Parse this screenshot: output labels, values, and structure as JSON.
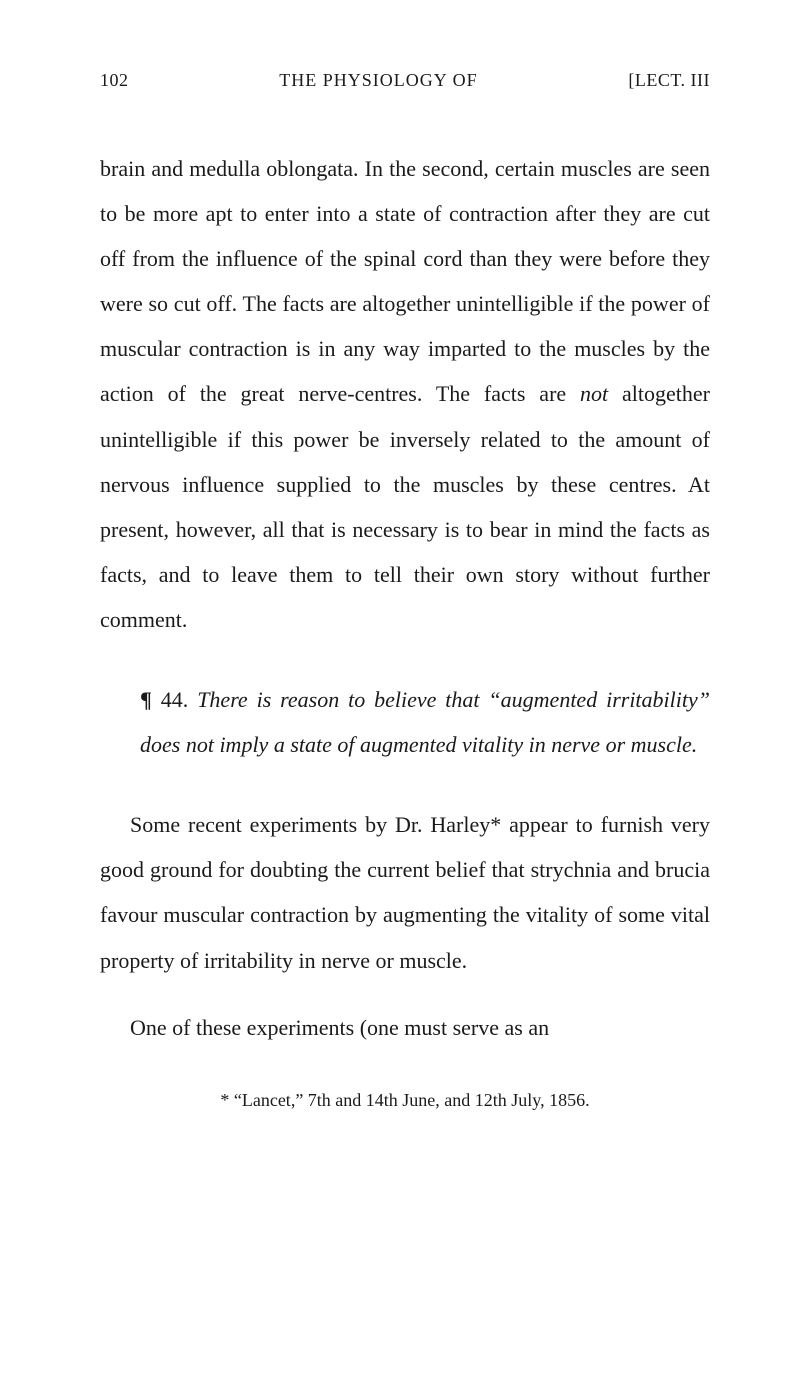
{
  "header": {
    "page_number": "102",
    "running_title": "THE PHYSIOLOGY OF",
    "section_marker": "[LECT. III"
  },
  "paragraphs": {
    "main1_a": "brain and medulla oblongata. In the second, certain muscles are seen to be more apt to enter into a state of contraction after they are cut off from the influence of the spinal cord than they were before they were so cut off. The facts are altogether unintelligible if the power of muscular contraction is in any way im­parted to the muscles by the action of the great nerve-centres. The facts are ",
    "main1_not": "not",
    "main1_b": " altogether unintelligible if this power be inversely related to the amount of nervous influence supplied to the muscles by these centres. At present, however, all that is necessary is to bear in mind the facts as facts, and to leave them to tell their own story without further comment.",
    "heading_pilcrow": "¶",
    "heading_num": " 44. ",
    "heading_italic": "There is reason to believe that “augmented irritability” does not imply a state of augmented vitality in nerve or muscle.",
    "main2": "Some recent experiments by Dr. Harley* appear to furnish very good ground for doubting the current belief that strychnia and brucia favour muscular con­traction by augmenting the vitality of some vital property of irritability in nerve or muscle.",
    "main3": "One of these experiments (one must serve as an"
  },
  "footnote": "* “Lancet,” 7th and 14th June, and 12th July, 1856."
}
